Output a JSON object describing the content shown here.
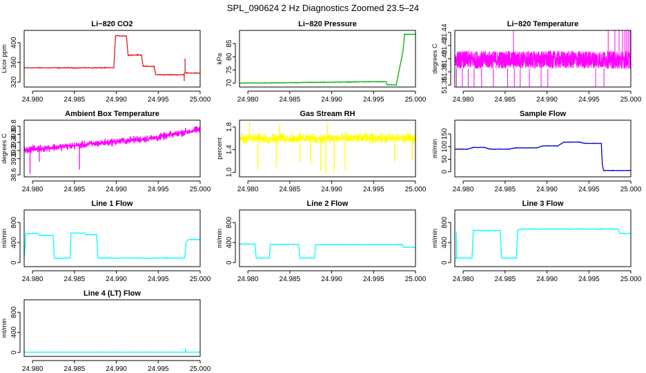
{
  "figure": {
    "title": "SPL_090624  2 Hz Diagnostics Zoomed 23.5–24"
  },
  "chart_data": [
    {
      "id": "co2",
      "type": "line",
      "title": "Li−820 CO2",
      "xlabel": "",
      "ylabel": "Licor ppm",
      "xlim": [
        24.979,
        25.0
      ],
      "ylim": [
        310,
        425
      ],
      "xticks": [
        "24.980",
        "24.985",
        "24.990",
        "24.995",
        "25.000"
      ],
      "yticks": [
        "320",
        "360",
        "400"
      ],
      "series": [
        {
          "color": "#e31a1c",
          "noise": 1.5,
          "spikes": [
            [
              24.9981,
              322
            ],
            [
              24.9982,
              368
            ]
          ],
          "x": [
            24.979,
            24.9897,
            24.9899,
            24.9912,
            24.9914,
            24.993,
            24.9932,
            24.9945,
            24.9947,
            24.998,
            24.9982,
            25.0
          ],
          "y": [
            349,
            349,
            414,
            414,
            375,
            375,
            352,
            352,
            335,
            335,
            339,
            338
          ]
        }
      ]
    },
    {
      "id": "pressure",
      "type": "line",
      "title": "Li−820 Pressure",
      "xlabel": "",
      "ylabel": "kPa",
      "xlim": [
        24.979,
        25.0
      ],
      "ylim": [
        68.5,
        90
      ],
      "xticks": [
        "24.980",
        "24.985",
        "24.990",
        "24.995",
        "25.000"
      ],
      "yticks": [
        "70",
        "75",
        "80",
        "85"
      ],
      "series": [
        {
          "color": "#00b000",
          "noise": 0.2,
          "spikes": [],
          "x": [
            24.979,
            24.984,
            24.989,
            24.994,
            24.9965,
            24.9966,
            24.9977,
            24.9978,
            24.9985,
            24.9987,
            25.0
          ],
          "y": [
            70.0,
            70.1,
            70.3,
            70.5,
            70.5,
            69.3,
            69.3,
            70.8,
            82,
            88.5,
            88.5
          ]
        }
      ]
    },
    {
      "id": "licor_temp",
      "type": "line",
      "title": "Li−820 Temperature",
      "xlabel": "",
      "ylabel": "degrees C",
      "xlim": [
        24.979,
        25.0
      ],
      "ylim": [
        51.357,
        51.443
      ],
      "xticks": [
        "24.980",
        "24.985",
        "24.990",
        "24.995",
        "25.000"
      ],
      "yticks": [
        "51.36",
        "51.38",
        "51.40",
        "51.42",
        "51.44"
      ],
      "series": [
        {
          "color": "#ff00ff",
          "band": [
            51.385,
            51.412
          ],
          "density": 1400,
          "spikes_low": [
            24.9792,
            24.9799,
            24.9806,
            24.9813,
            24.9822,
            24.9836,
            24.9853,
            24.9861,
            24.9868,
            24.9879,
            24.9893,
            24.9901,
            24.9958,
            24.9968
          ],
          "spikes_high": [
            24.986,
            24.9973,
            24.9981,
            24.9986,
            24.999,
            24.9993,
            24.9995,
            24.9997,
            24.9999
          ],
          "x": [
            24.979,
            25.0
          ],
          "y": [
            51.399,
            51.399
          ]
        }
      ]
    },
    {
      "id": "ambient_temp",
      "type": "line",
      "title": "Ambient Box Temperature",
      "xlabel": "",
      "ylabel": "degrees C",
      "xlim": [
        24.979,
        25.0
      ],
      "ylim": [
        38.55,
        39.95
      ],
      "xticks": [
        "24.980",
        "24.985",
        "24.990",
        "24.995",
        "25.000"
      ],
      "yticks": [
        "38.6",
        "39.0",
        "39.2",
        "39.4",
        "39.6",
        "39.8"
      ],
      "series": [
        {
          "color": "#ff00ff",
          "noise": 0.12,
          "density": 700,
          "spikes": [
            [
              24.9797,
              38.62
            ],
            [
              24.9856,
              38.73
            ],
            [
              24.9808,
              38.92
            ]
          ],
          "x": [
            24.979,
            24.985,
            24.99,
            24.995,
            24.998,
            25.0
          ],
          "y": [
            39.22,
            39.32,
            39.42,
            39.52,
            39.65,
            39.72
          ]
        }
      ]
    },
    {
      "id": "rh",
      "type": "line",
      "title": "Gas Stream RH",
      "xlabel": "",
      "ylabel": "percent",
      "xlim": [
        24.979,
        25.0
      ],
      "ylim": [
        0.92,
        1.92
      ],
      "xticks": [
        "24.980",
        "24.985",
        "24.990",
        "24.995",
        "25.000"
      ],
      "yticks": [
        "1.0",
        "1.4",
        "1.8"
      ],
      "series": [
        {
          "color": "#ffff00",
          "noise": 0.12,
          "density": 700,
          "spikes": [
            [
              24.9812,
              1.05
            ],
            [
              24.9834,
              1.08
            ],
            [
              24.9862,
              1.18
            ],
            [
              24.9875,
              1.16
            ],
            [
              24.9887,
              1.02
            ],
            [
              24.9893,
              0.98
            ],
            [
              24.9903,
              1.0
            ],
            [
              24.9916,
              1.05
            ],
            [
              24.9975,
              1.18
            ],
            [
              24.9996,
              1.2
            ],
            [
              24.9802,
              1.88
            ],
            [
              24.9838,
              1.84
            ],
            [
              24.9895,
              1.86
            ]
          ],
          "x": [
            24.979,
            25.0
          ],
          "y": [
            1.6,
            1.6
          ]
        }
      ]
    },
    {
      "id": "sample_flow",
      "type": "line",
      "title": "Sample Flow",
      "xlabel": "",
      "ylabel": "ml/min",
      "xlim": [
        24.979,
        25.0
      ],
      "ylim": [
        -20,
        205
      ],
      "xticks": [
        "24.980",
        "24.985",
        "24.990",
        "24.995",
        "25.000"
      ],
      "yticks": [
        "0",
        "50",
        "100",
        "150"
      ],
      "series": [
        {
          "color": "#0000cc",
          "noise": 1.5,
          "spikes": [],
          "x": [
            24.979,
            24.9805,
            24.9812,
            24.9825,
            24.9832,
            24.9855,
            24.9862,
            24.9888,
            24.9895,
            24.9913,
            24.992,
            24.9938,
            24.9945,
            24.99648,
            24.9966,
            24.99675,
            25.0
          ],
          "y": [
            90,
            90,
            97,
            97,
            90,
            90,
            95,
            95,
            103,
            103,
            118,
            118,
            113,
            113,
            30,
            5,
            5
          ]
        }
      ]
    },
    {
      "id": "line1",
      "type": "line",
      "title": "Line 1 Flow",
      "xlabel": "",
      "ylabel": "ml/min",
      "xlim": [
        24.979,
        25.0
      ],
      "ylim": [
        -80,
        1050
      ],
      "xticks": [
        "24.980",
        "24.985",
        "24.990",
        "24.995",
        "25.000"
      ],
      "yticks": [
        "0",
        "400",
        "800"
      ],
      "series": [
        {
          "color": "#00ffff",
          "noise": 12,
          "spikes": [],
          "x": [
            24.979,
            24.9792,
            24.9806,
            24.9808,
            24.98245,
            24.9826,
            24.9845,
            24.9846,
            24.9862,
            24.9864,
            24.98765,
            24.9878,
            24.99815,
            24.9983,
            24.9986,
            25.0
          ],
          "y": [
            90,
            580,
            580,
            545,
            545,
            90,
            90,
            590,
            590,
            560,
            560,
            90,
            90,
            390,
            460,
            460
          ]
        }
      ]
    },
    {
      "id": "line2",
      "type": "line",
      "title": "Line 2 Flow",
      "xlabel": "",
      "ylabel": "ml/min",
      "xlim": [
        24.979,
        25.0
      ],
      "ylim": [
        -80,
        1050
      ],
      "xticks": [
        "24.980",
        "24.985",
        "24.990",
        "24.995",
        "25.000"
      ],
      "yticks": [
        "0",
        "400",
        "800"
      ],
      "series": [
        {
          "color": "#00ffff",
          "noise": 10,
          "spikes": [],
          "x": [
            24.979,
            24.98085,
            24.981,
            24.98255,
            24.9827,
            24.98605,
            24.9862,
            24.98795,
            24.9881,
            24.9984,
            24.9986,
            25.0
          ],
          "y": [
            370,
            370,
            90,
            90,
            365,
            365,
            90,
            90,
            360,
            360,
            305,
            305
          ]
        }
      ]
    },
    {
      "id": "line3",
      "type": "line",
      "title": "Line 3 Flow",
      "xlabel": "",
      "ylabel": "ml/min",
      "xlim": [
        24.979,
        25.0
      ],
      "ylim": [
        -80,
        1050
      ],
      "xticks": [
        "24.980",
        "24.985",
        "24.990",
        "24.995",
        "25.000"
      ],
      "yticks": [
        "0",
        "400",
        "800"
      ],
      "series": [
        {
          "color": "#00ffff",
          "noise": 12,
          "spikes": [
            [
              24.9792,
              610
            ]
          ],
          "x": [
            24.979,
            24.9793,
            24.98105,
            24.9812,
            24.9844,
            24.9846,
            24.98635,
            24.9865,
            24.9872,
            24.9985,
            24.9987,
            25.0
          ],
          "y": [
            90,
            90,
            90,
            640,
            640,
            90,
            90,
            650,
            670,
            670,
            580,
            580
          ]
        }
      ]
    },
    {
      "id": "line4",
      "type": "line",
      "title": "Line 4 (LT) Flow",
      "xlabel": "",
      "ylabel": "ml/min",
      "xlim": [
        24.979,
        25.0
      ],
      "ylim": [
        -80,
        1050
      ],
      "xticks": [
        "24.980",
        "24.985",
        "24.990",
        "24.995",
        "25.000"
      ],
      "yticks": [
        "0",
        "400",
        "800"
      ],
      "series": [
        {
          "color": "#00ffff",
          "noise": 3,
          "spikes": [
            [
              24.99825,
              85
            ],
            [
              24.9983,
              40
            ]
          ],
          "x": [
            24.979,
            25.0
          ],
          "y": [
            5,
            5
          ]
        }
      ]
    }
  ]
}
